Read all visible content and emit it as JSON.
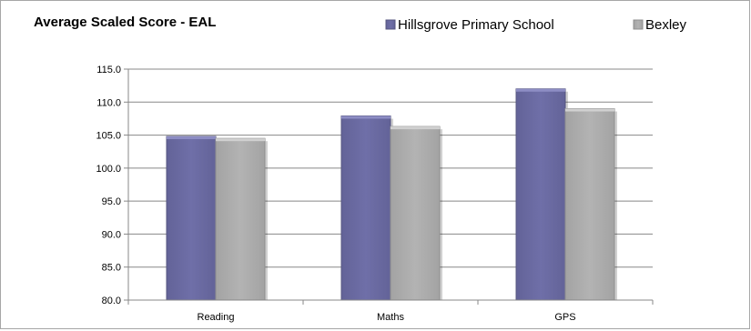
{
  "chart_data": {
    "type": "bar",
    "title": "Average Scaled Score - EAL",
    "categories": [
      "Reading",
      "Maths",
      "GPS"
    ],
    "series": [
      {
        "name": "Hillsgrove Primary School",
        "values": [
          104.8,
          107.9,
          112.0
        ],
        "color": "#6f6fa8"
      },
      {
        "name": "Bexley",
        "values": [
          104.5,
          106.3,
          109.0
        ],
        "color": "#b3b3b3"
      }
    ],
    "ylim": [
      80.0,
      115.0
    ],
    "yticks": [
      "80.0",
      "85.0",
      "90.0",
      "95.0",
      "100.0",
      "105.0",
      "110.0",
      "115.0"
    ],
    "grid": true,
    "legend": "top-right"
  }
}
